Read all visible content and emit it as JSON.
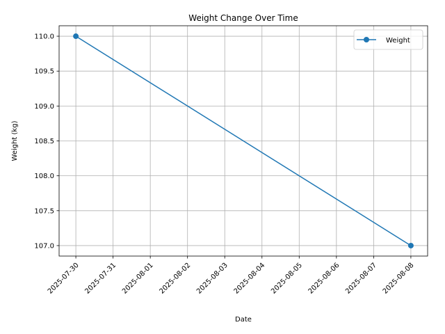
{
  "chart_data": {
    "type": "line",
    "title": "Weight Change Over Time",
    "xlabel": "Date",
    "ylabel": "Weight (kg)",
    "x": [
      "2025-07-30",
      "2025-08-08"
    ],
    "series": [
      {
        "name": "Weight",
        "values": [
          110.0,
          107.0
        ],
        "color": "#1f77b4",
        "marker": "circle"
      }
    ],
    "x_ticks": [
      "2025-07-30",
      "2025-07-31",
      "2025-08-01",
      "2025-08-02",
      "2025-08-03",
      "2025-08-04",
      "2025-08-05",
      "2025-08-06",
      "2025-08-07",
      "2025-08-08"
    ],
    "y_ticks": [
      "107.0",
      "107.5",
      "108.0",
      "108.5",
      "109.0",
      "109.5",
      "110.0"
    ],
    "ylim": [
      106.85,
      110.15
    ],
    "xlim": [
      "2025-07-29T13:12",
      "2025-08-08T10:48"
    ],
    "grid": true,
    "legend_position": "top-right"
  }
}
